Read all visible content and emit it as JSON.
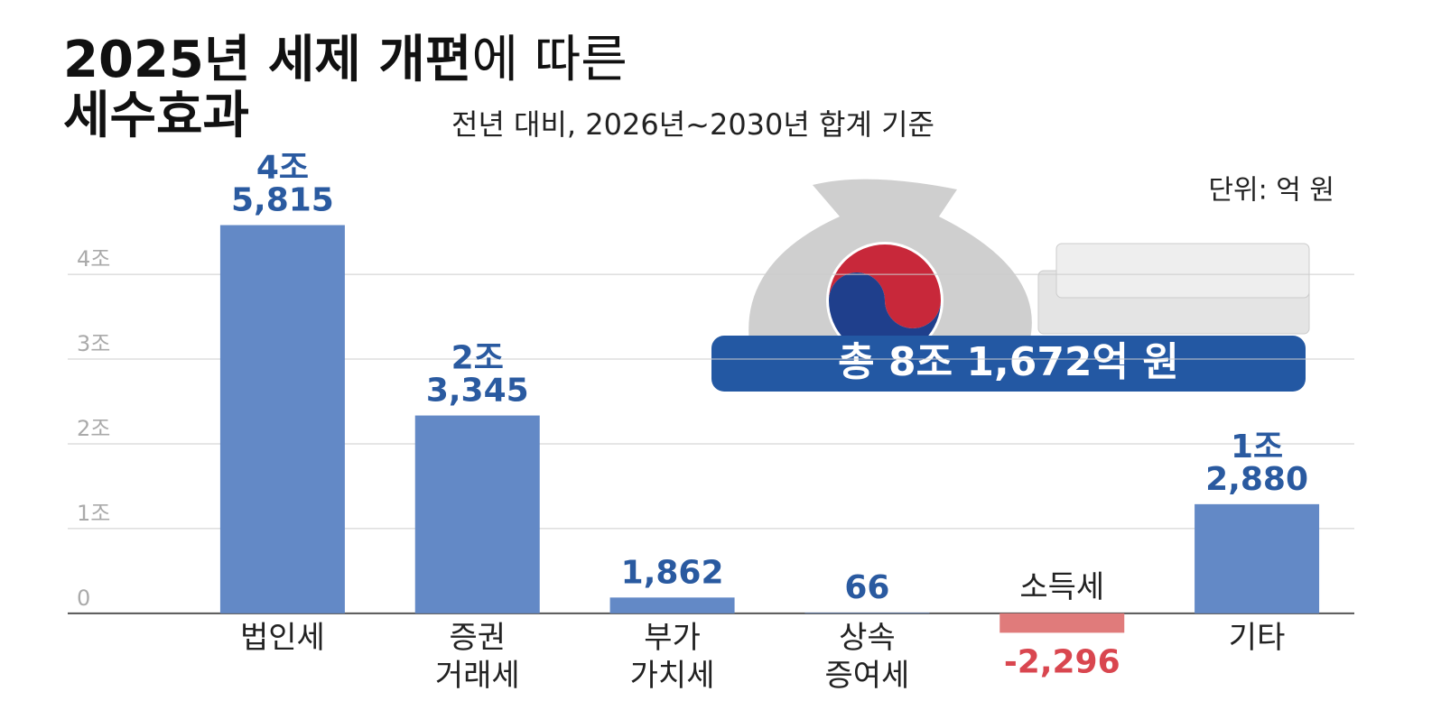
{
  "chart_data": {
    "type": "bar",
    "title": [
      "2025년 세제 개편",
      "에 따른",
      "세수효과"
    ],
    "subtitle": "전년 대비, 2026년~2030년 합계 기준",
    "unit": "단위: 억 원",
    "annotation": "총 8조 1,672억 원",
    "categories": [
      "법인세",
      "증권 거래세",
      "부가 가치세",
      "상속 증여세",
      "소득세",
      "기타"
    ],
    "values": [
      45815,
      23345,
      1862,
      66,
      -2296,
      12880
    ],
    "value_labels": [
      "4조 5,815",
      "2조 3,345",
      "1,862",
      "66",
      "-2,296",
      "1조 2,880"
    ],
    "color": "#6389c6",
    "negative_color": "#e07b7b",
    "ylim": [
      -3000,
      48000
    ],
    "yticks": [
      0,
      {
        "value": 10000,
        "label": "1조"
      },
      {
        "value": 20000,
        "label": "2조"
      },
      {
        "value": 30000,
        "label": "3조"
      },
      {
        "value": 40000,
        "label": "4조"
      }
    ],
    "grid": true
  }
}
